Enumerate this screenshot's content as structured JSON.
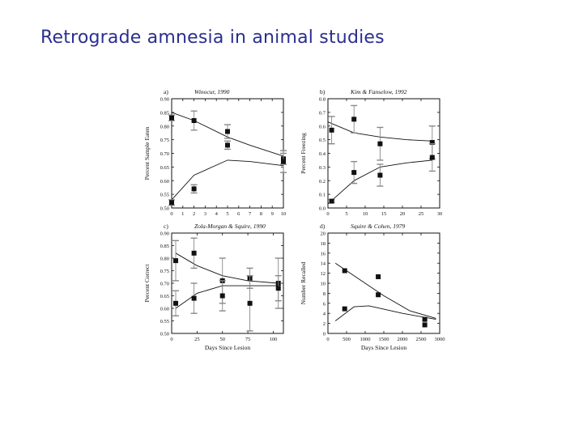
{
  "slide": {
    "title": "Retrograde amnesia in animal studies",
    "colors": {
      "title": "#2b2f8f",
      "ink": "#111111",
      "errorbar": "#888888"
    }
  },
  "chart_data": [
    {
      "type": "scatter",
      "panel_label": "a)",
      "title": "Winocur, 1990",
      "ylabel": "Percent Sample Eaten",
      "xlabel": "",
      "xlim": [
        0,
        10
      ],
      "ylim": [
        0.5,
        0.9
      ],
      "xticks": [
        0,
        1,
        2,
        3,
        4,
        5,
        6,
        7,
        8,
        9,
        10
      ],
      "yticks": [
        0.5,
        0.55,
        0.6,
        0.65,
        0.7,
        0.75,
        0.8,
        0.85,
        0.9
      ],
      "ytick_labels": [
        "0.50",
        "0.55",
        "0.60",
        "0.65",
        "0.70",
        "0.75",
        "0.80",
        "0.85",
        "0.90"
      ],
      "xtick_labels": [
        "0",
        "1",
        "2",
        "3",
        "4",
        "5",
        "6",
        "7",
        "8",
        "9",
        "10"
      ],
      "series": [
        {
          "points": [
            {
              "x": 0,
              "y": 0.83,
              "err": 0.01
            },
            {
              "x": 2,
              "y": 0.82,
              "err": 0.035
            },
            {
              "x": 5,
              "y": 0.78,
              "err": 0.025
            },
            {
              "x": 10,
              "y": 0.68,
              "err": 0.02
            }
          ],
          "fit": [
            [
              0,
              0.85
            ],
            [
              2,
              0.82
            ],
            [
              5,
              0.76
            ],
            [
              7,
              0.73
            ],
            [
              10,
              0.69
            ]
          ]
        },
        {
          "points": [
            {
              "x": 0,
              "y": 0.52,
              "err": 0.01
            },
            {
              "x": 2,
              "y": 0.57,
              "err": 0.015
            },
            {
              "x": 5,
              "y": 0.73,
              "err": 0.015
            },
            {
              "x": 10,
              "y": 0.67,
              "err": 0.04
            }
          ],
          "fit": [
            [
              0,
              0.53
            ],
            [
              2,
              0.62
            ],
            [
              5,
              0.675
            ],
            [
              7,
              0.67
            ],
            [
              10,
              0.655
            ]
          ]
        }
      ]
    },
    {
      "type": "scatter",
      "panel_label": "b)",
      "title": "Kim & Fanselow, 1992",
      "ylabel": "Percent Freezing",
      "xlabel": "",
      "xlim": [
        0,
        30
      ],
      "ylim": [
        0,
        0.8
      ],
      "xticks": [
        0,
        5,
        10,
        15,
        20,
        25,
        30
      ],
      "yticks": [
        0,
        0.1,
        0.2,
        0.3,
        0.4,
        0.5,
        0.6,
        0.7,
        0.8
      ],
      "ytick_labels": [
        "0.0",
        "0.1",
        "0.2",
        "0.3",
        "0.4",
        "0.5",
        "0.6",
        "0.7",
        "0.8"
      ],
      "xtick_labels": [
        "0",
        "5",
        "10",
        "15",
        "20",
        "25",
        "30"
      ],
      "series": [
        {
          "points": [
            {
              "x": 1,
              "y": 0.57,
              "err": 0.1
            },
            {
              "x": 7,
              "y": 0.65,
              "err": 0.1
            },
            {
              "x": 14,
              "y": 0.47,
              "err": 0.12
            },
            {
              "x": 28,
              "y": 0.48,
              "err": 0.12
            }
          ],
          "fit": [
            [
              0,
              0.63
            ],
            [
              7,
              0.55
            ],
            [
              14,
              0.52
            ],
            [
              21,
              0.5
            ],
            [
              28,
              0.49
            ]
          ]
        },
        {
          "points": [
            {
              "x": 1,
              "y": 0.05,
              "err": 0.01
            },
            {
              "x": 7,
              "y": 0.26,
              "err": 0.08
            },
            {
              "x": 14,
              "y": 0.24,
              "err": 0.08
            },
            {
              "x": 28,
              "y": 0.37,
              "err": 0.1
            }
          ],
          "fit": [
            [
              0,
              0.03
            ],
            [
              7,
              0.2
            ],
            [
              14,
              0.3
            ],
            [
              21,
              0.33
            ],
            [
              28,
              0.35
            ]
          ]
        }
      ]
    },
    {
      "type": "scatter",
      "panel_label": "c)",
      "title": "Zola-Morgan & Squire, 1990",
      "ylabel": "Percent Correct",
      "xlabel": "Days Since Lesion",
      "xlim": [
        0,
        110
      ],
      "ylim": [
        0.5,
        0.9
      ],
      "xticks": [
        0,
        25,
        50,
        75,
        100
      ],
      "yticks": [
        0.5,
        0.55,
        0.6,
        0.65,
        0.7,
        0.75,
        0.8,
        0.85,
        0.9
      ],
      "ytick_labels": [
        "0.50",
        "0.55",
        "0.60",
        "0.65",
        "0.70",
        "0.75",
        "0.80",
        "0.85",
        "0.90"
      ],
      "xtick_labels": [
        "0",
        "25",
        "50",
        "75",
        "100"
      ],
      "series": [
        {
          "points": [
            {
              "x": 4,
              "y": 0.79,
              "err": 0.08
            },
            {
              "x": 22,
              "y": 0.82,
              "err": 0.06
            },
            {
              "x": 50,
              "y": 0.71,
              "err": 0.09
            },
            {
              "x": 77,
              "y": 0.72,
              "err": 0.04
            },
            {
              "x": 105,
              "y": 0.7,
              "err": 0.1
            }
          ],
          "fit": [
            [
              4,
              0.82
            ],
            [
              25,
              0.77
            ],
            [
              50,
              0.73
            ],
            [
              75,
              0.71
            ],
            [
              105,
              0.7
            ]
          ]
        },
        {
          "points": [
            {
              "x": 4,
              "y": 0.62,
              "err": 0.05
            },
            {
              "x": 22,
              "y": 0.64,
              "err": 0.06
            },
            {
              "x": 50,
              "y": 0.65,
              "err": 0.06
            },
            {
              "x": 77,
              "y": 0.62,
              "err": 0.11
            },
            {
              "x": 105,
              "y": 0.68,
              "err": 0.05
            }
          ],
          "fit": [
            [
              4,
              0.6
            ],
            [
              25,
              0.66
            ],
            [
              50,
              0.69
            ],
            [
              75,
              0.69
            ],
            [
              105,
              0.69
            ]
          ]
        }
      ]
    },
    {
      "type": "scatter",
      "panel_label": "d)",
      "title": "Squire & Cohen, 1979",
      "ylabel": "Number Recalled",
      "xlabel": "Days Since Lesion",
      "xlim": [
        0,
        3000
      ],
      "ylim": [
        0,
        20
      ],
      "xticks": [
        0,
        500,
        1000,
        1500,
        2000,
        2500,
        3000
      ],
      "yticks": [
        0,
        2,
        4,
        6,
        8,
        10,
        12,
        14,
        16,
        18,
        20
      ],
      "ytick_labels": [
        "0",
        "2",
        "4",
        "6",
        "8",
        "10",
        "12",
        "14",
        "16",
        "18",
        "20"
      ],
      "xtick_labels": [
        "0",
        "500",
        "1000",
        "1500",
        "2000",
        "2500",
        "3000"
      ],
      "series": [
        {
          "points": [
            {
              "x": 450,
              "y": 12.5,
              "err": 0
            },
            {
              "x": 1350,
              "y": 11.3,
              "err": 0
            },
            {
              "x": 2600,
              "y": 2.8,
              "err": 0
            }
          ],
          "fit": [
            [
              200,
              14
            ],
            [
              1000,
              10
            ],
            [
              1500,
              7.5
            ],
            [
              2200,
              4.5
            ],
            [
              2900,
              3
            ]
          ]
        },
        {
          "points": [
            {
              "x": 450,
              "y": 4.9,
              "err": 0
            },
            {
              "x": 1350,
              "y": 7.7,
              "err": 0
            },
            {
              "x": 2600,
              "y": 1.7,
              "err": 0
            }
          ],
          "fit": [
            [
              200,
              2.5
            ],
            [
              700,
              5.3
            ],
            [
              1100,
              5.5
            ],
            [
              2000,
              4
            ],
            [
              2900,
              2.8
            ]
          ]
        }
      ]
    }
  ]
}
